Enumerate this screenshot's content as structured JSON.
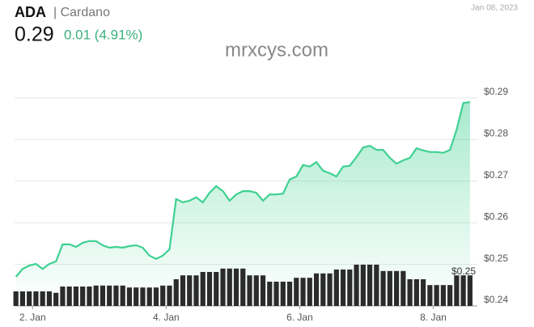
{
  "chart_data": {
    "type": "line",
    "title": "ADA",
    "subtitle": "| Cardano",
    "date": "Jan 08, 2023",
    "price": "0.29",
    "change": "0.01 (4.91%)",
    "watermark": "mrxcys.com",
    "annotation": "$0.25",
    "grid": true,
    "xlim": [
      1.73,
      8.6
    ],
    "xticks": [
      {
        "value": 2,
        "label": "2. Jan"
      },
      {
        "value": 4,
        "label": "4. Jan"
      },
      {
        "value": 6,
        "label": "6. Jan"
      },
      {
        "value": 8,
        "label": "8. Jan"
      }
    ],
    "ylim": [
      0.24,
      0.3
    ],
    "yticks": [
      {
        "value": 0.24,
        "label": "$0.24"
      },
      {
        "value": 0.25,
        "label": "$0.25"
      },
      {
        "value": 0.26,
        "label": "$0.26"
      },
      {
        "value": 0.27,
        "label": "$0.27"
      },
      {
        "value": 0.28,
        "label": "$0.28"
      },
      {
        "value": 0.29,
        "label": "$0.29"
      }
    ],
    "y2lim": [
      0,
      100
    ],
    "x": [
      1.75,
      1.85,
      1.95,
      2.05,
      2.15,
      2.25,
      2.35,
      2.45,
      2.55,
      2.65,
      2.75,
      2.85,
      2.95,
      3.05,
      3.15,
      3.25,
      3.35,
      3.45,
      3.55,
      3.65,
      3.75,
      3.85,
      3.95,
      4.05,
      4.15,
      4.25,
      4.35,
      4.45,
      4.55,
      4.65,
      4.75,
      4.85,
      4.95,
      5.05,
      5.15,
      5.25,
      5.35,
      5.45,
      5.55,
      5.65,
      5.75,
      5.85,
      5.95,
      6.05,
      6.15,
      6.25,
      6.35,
      6.45,
      6.55,
      6.65,
      6.75,
      6.85,
      6.95,
      7.05,
      7.15,
      7.25,
      7.35,
      7.45,
      7.55,
      7.65,
      7.75,
      7.85,
      7.95,
      8.05,
      8.15,
      8.25,
      8.35,
      8.45,
      8.55
    ],
    "series": [
      {
        "type": "line",
        "color": "#3ed191",
        "values": [
          0.247,
          0.2489,
          0.2497,
          0.2501,
          0.2489,
          0.2501,
          0.2507,
          0.2548,
          0.2548,
          0.2542,
          0.2552,
          0.2556,
          0.2556,
          0.2546,
          0.254,
          0.2542,
          0.254,
          0.2544,
          0.2546,
          0.254,
          0.2521,
          0.2513,
          0.2521,
          0.2536,
          0.2657,
          0.2649,
          0.2653,
          0.2661,
          0.2649,
          0.2672,
          0.2688,
          0.2676,
          0.2653,
          0.2668,
          0.2676,
          0.2676,
          0.2672,
          0.2653,
          0.2668,
          0.2668,
          0.267,
          0.2704,
          0.2711,
          0.2739,
          0.2735,
          0.2746,
          0.2725,
          0.2719,
          0.2711,
          0.2735,
          0.2737,
          0.2758,
          0.2781,
          0.2785,
          0.2775,
          0.2775,
          0.2756,
          0.2742,
          0.275,
          0.2756,
          0.2779,
          0.2774,
          0.277,
          0.277,
          0.2768,
          0.2775,
          0.2824,
          0.2888,
          0.289
        ]
      },
      {
        "type": "bar",
        "axis": "y2",
        "color": "#2b2b2b",
        "values": [
          30,
          30,
          30,
          30,
          30,
          30,
          27,
          40,
          40,
          40,
          40,
          40,
          42,
          42,
          42,
          42,
          42,
          38,
          38,
          38,
          38,
          38,
          42,
          42,
          55,
          63,
          63,
          63,
          70,
          70,
          70,
          77,
          77,
          77,
          77,
          63,
          63,
          63,
          50,
          50,
          50,
          50,
          58,
          58,
          58,
          67,
          67,
          67,
          75,
          75,
          75,
          85,
          85,
          85,
          85,
          72,
          72,
          72,
          72,
          55,
          55,
          55,
          43,
          43,
          43,
          43,
          63,
          63,
          63
        ]
      }
    ]
  }
}
